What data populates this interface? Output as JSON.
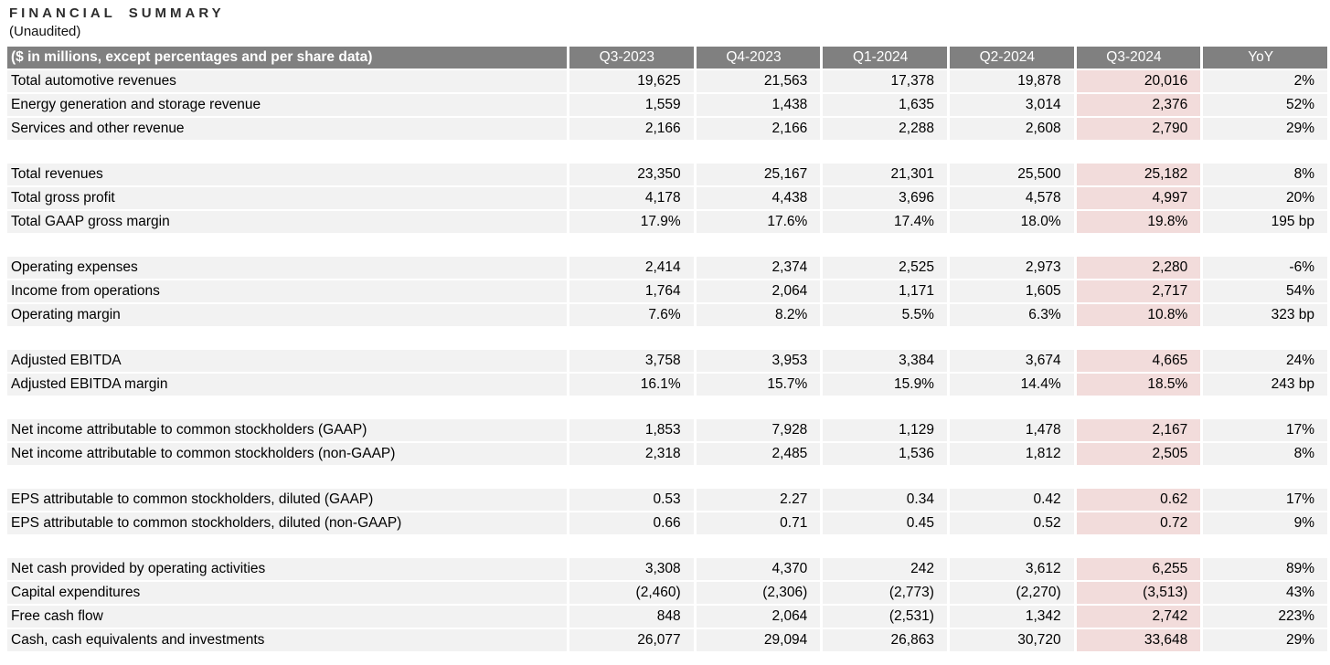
{
  "title": "FINANCIAL SUMMARY",
  "subtitle": "(Unaudited)",
  "table": {
    "header": {
      "label": "($ in millions, except percentages and per share data)",
      "columns": [
        "Q3-2023",
        "Q4-2023",
        "Q1-2024",
        "Q2-2024",
        "Q3-2024",
        "YoY"
      ]
    },
    "highlight_column": "Q3-2024",
    "colors": {
      "header_bg": "#808080",
      "header_text": "#ffffff",
      "row_bg": "#f2f2f2",
      "highlight_bg": "#f2dcdb"
    },
    "sections": [
      {
        "rows": [
          {
            "label": "Total automotive revenues",
            "values": [
              "19,625",
              "21,563",
              "17,378",
              "19,878",
              "20,016",
              "2%"
            ]
          },
          {
            "label": "Energy generation and storage revenue",
            "values": [
              "1,559",
              "1,438",
              "1,635",
              "3,014",
              "2,376",
              "52%"
            ]
          },
          {
            "label": "Services and other revenue",
            "values": [
              "2,166",
              "2,166",
              "2,288",
              "2,608",
              "2,790",
              "29%"
            ]
          }
        ]
      },
      {
        "rows": [
          {
            "label": "Total revenues",
            "values": [
              "23,350",
              "25,167",
              "21,301",
              "25,500",
              "25,182",
              "8%"
            ]
          },
          {
            "label": "Total gross profit",
            "values": [
              "4,178",
              "4,438",
              "3,696",
              "4,578",
              "4,997",
              "20%"
            ]
          },
          {
            "label": "Total GAAP gross margin",
            "values": [
              "17.9%",
              "17.6%",
              "17.4%",
              "18.0%",
              "19.8%",
              "195 bp"
            ]
          }
        ]
      },
      {
        "rows": [
          {
            "label": "Operating expenses",
            "values": [
              "2,414",
              "2,374",
              "2,525",
              "2,973",
              "2,280",
              "-6%"
            ]
          },
          {
            "label": "Income from operations",
            "values": [
              "1,764",
              "2,064",
              "1,171",
              "1,605",
              "2,717",
              "54%"
            ]
          },
          {
            "label": "Operating margin",
            "values": [
              "7.6%",
              "8.2%",
              "5.5%",
              "6.3%",
              "10.8%",
              "323 bp"
            ]
          }
        ]
      },
      {
        "rows": [
          {
            "label": "Adjusted EBITDA",
            "values": [
              "3,758",
              "3,953",
              "3,384",
              "3,674",
              "4,665",
              "24%"
            ]
          },
          {
            "label": "Adjusted EBITDA margin",
            "values": [
              "16.1%",
              "15.7%",
              "15.9%",
              "14.4%",
              "18.5%",
              "243 bp"
            ]
          }
        ]
      },
      {
        "rows": [
          {
            "label": "Net income attributable to common stockholders (GAAP)",
            "values": [
              "1,853",
              "7,928",
              "1,129",
              "1,478",
              "2,167",
              "17%"
            ]
          },
          {
            "label": "Net income attributable to common stockholders (non-GAAP)",
            "values": [
              "2,318",
              "2,485",
              "1,536",
              "1,812",
              "2,505",
              "8%"
            ]
          }
        ]
      },
      {
        "rows": [
          {
            "label": "EPS attributable to common stockholders, diluted (GAAP)",
            "values": [
              "0.53",
              "2.27",
              "0.34",
              "0.42",
              "0.62",
              "17%"
            ]
          },
          {
            "label": "EPS attributable to common stockholders, diluted (non-GAAP)",
            "values": [
              "0.66",
              "0.71",
              "0.45",
              "0.52",
              "0.72",
              "9%"
            ]
          }
        ]
      },
      {
        "rows": [
          {
            "label": "Net cash provided by operating activities",
            "values": [
              "3,308",
              "4,370",
              "242",
              "3,612",
              "6,255",
              "89%"
            ]
          },
          {
            "label": "Capital expenditures",
            "values": [
              "(2,460)",
              "(2,306)",
              "(2,773)",
              "(2,270)",
              "(3,513)",
              "43%"
            ]
          },
          {
            "label": "Free cash flow",
            "values": [
              "848",
              "2,064",
              "(2,531)",
              "1,342",
              "2,742",
              "223%"
            ]
          },
          {
            "label": "Cash, cash equivalents and investments",
            "values": [
              "26,077",
              "29,094",
              "26,863",
              "30,720",
              "33,648",
              "29%"
            ]
          }
        ]
      }
    ]
  }
}
